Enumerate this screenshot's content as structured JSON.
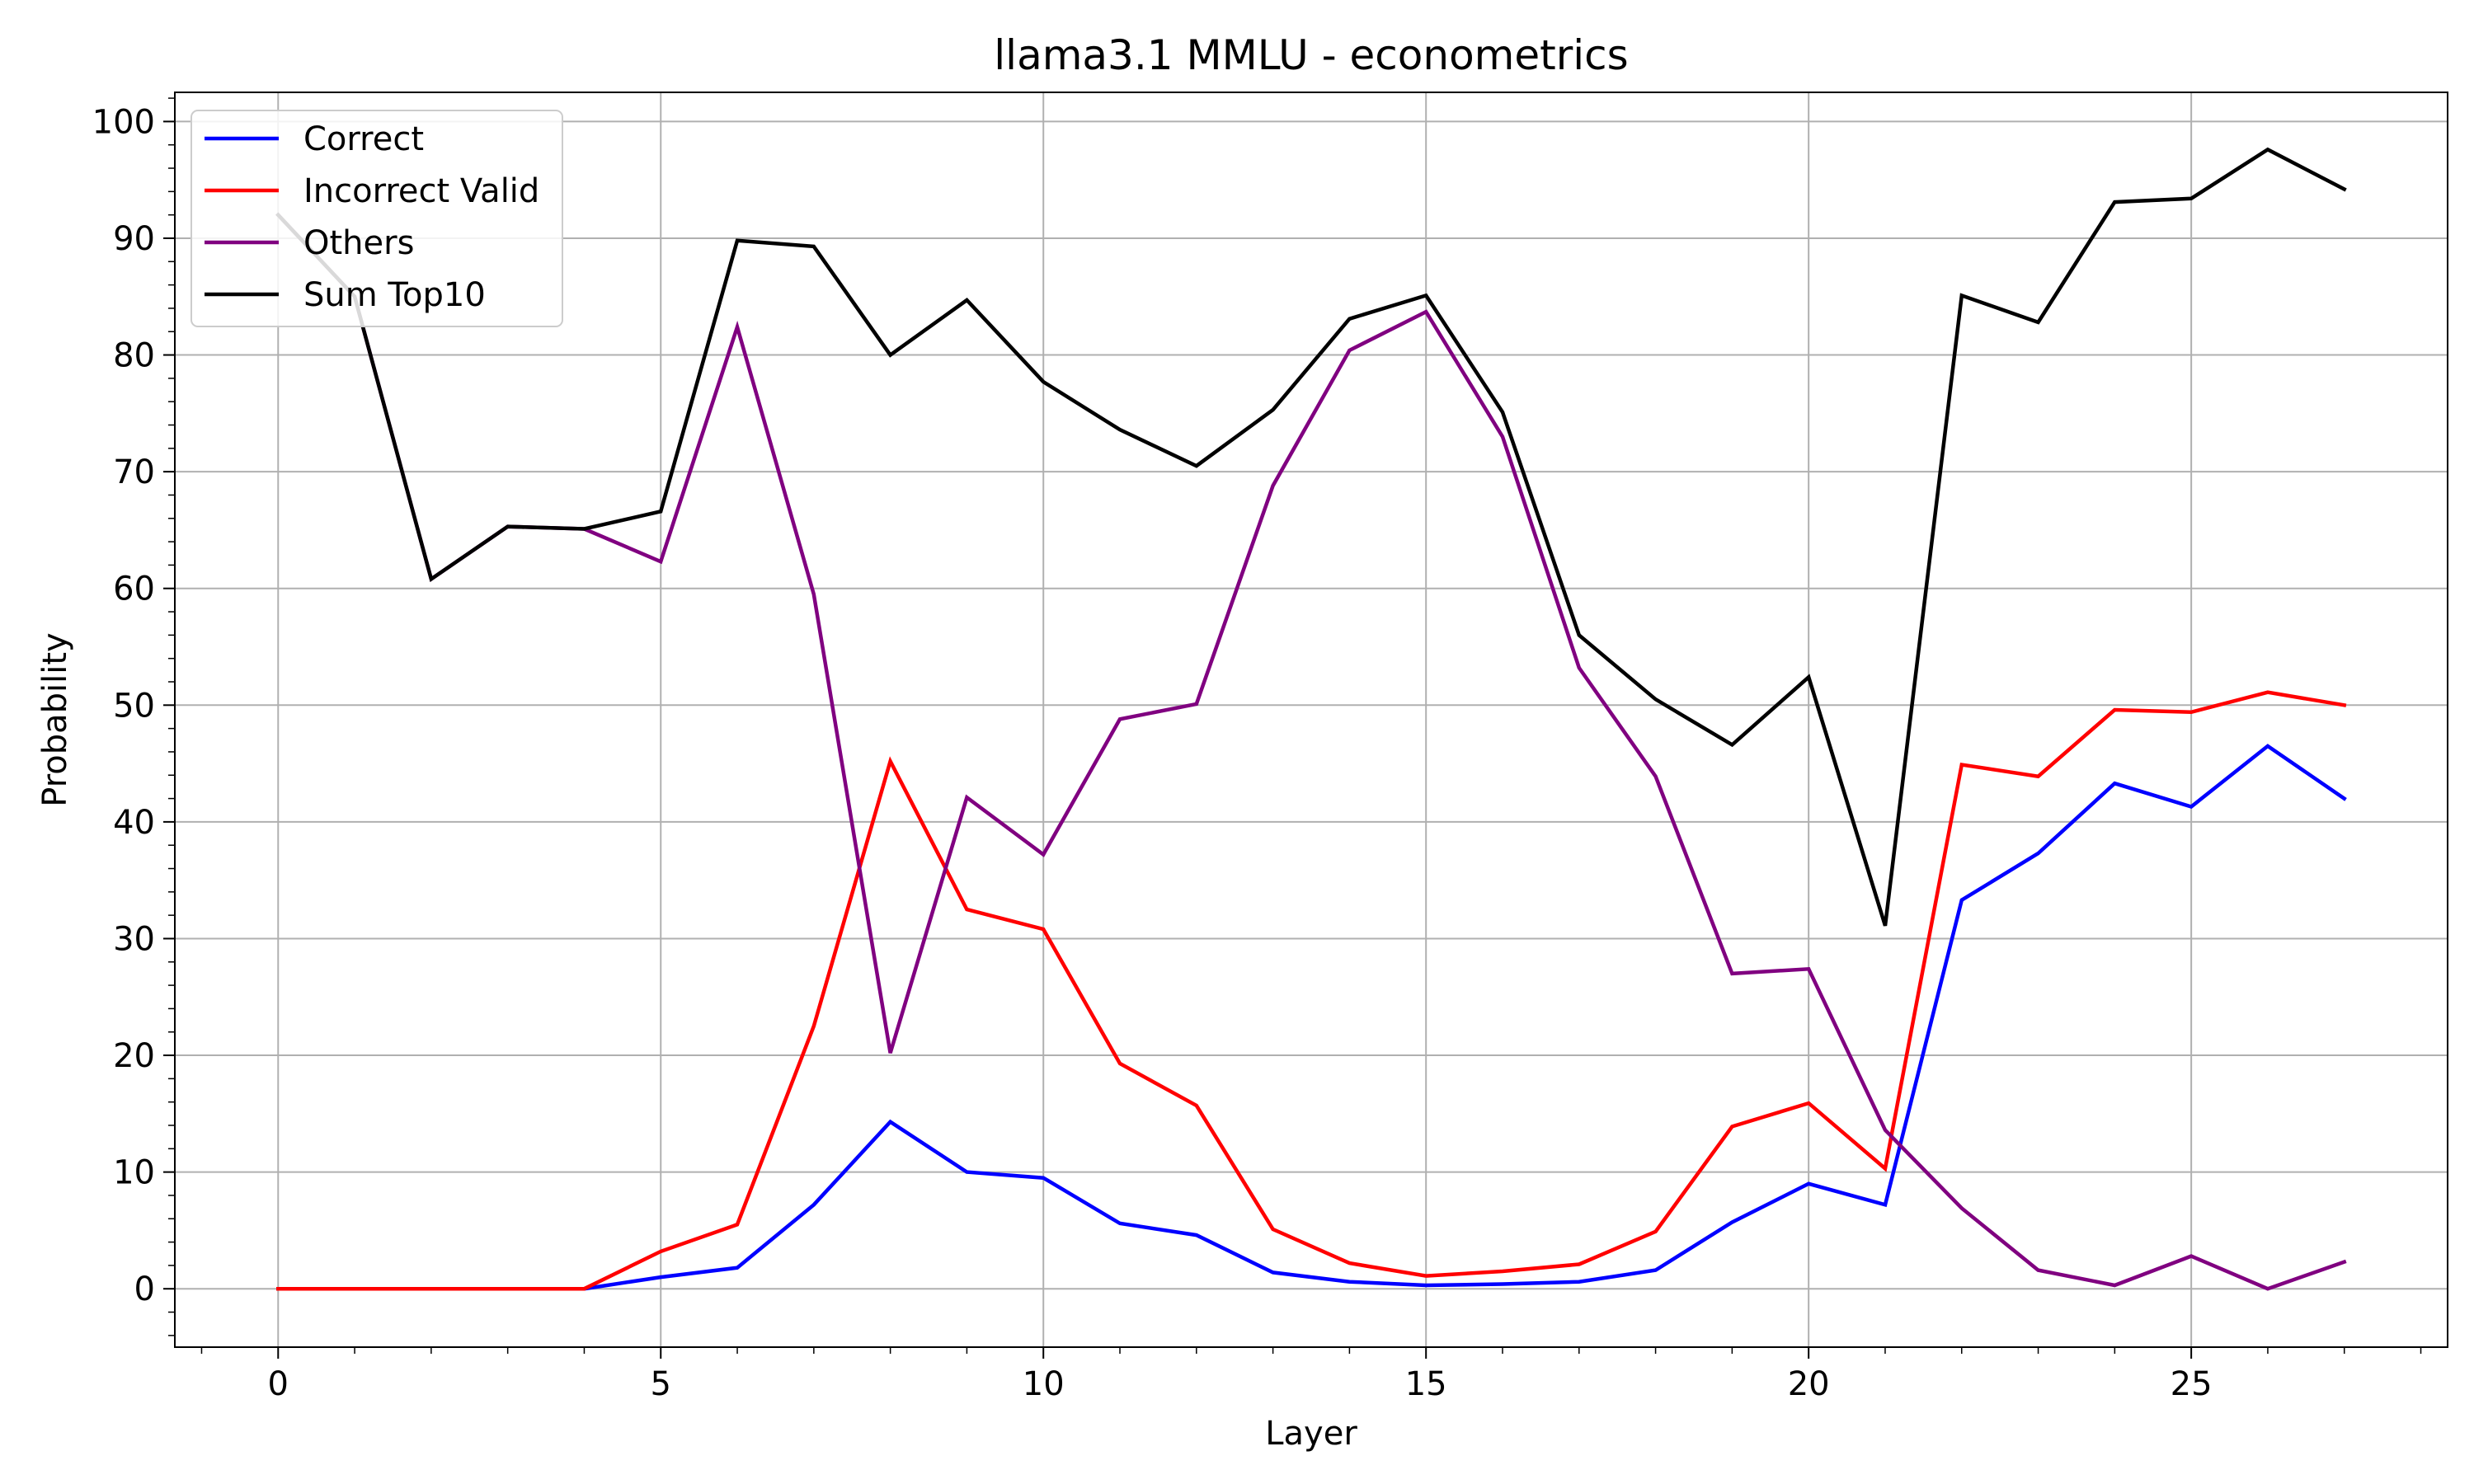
{
  "chart_data": {
    "type": "line",
    "title": "llama3.1 MMLU - econometrics",
    "xlabel": "Layer",
    "ylabel": "Probability",
    "xlim": [
      -1.35,
      28.35
    ],
    "ylim": [
      -5,
      102.5
    ],
    "x_ticks": [
      0,
      5,
      10,
      15,
      20,
      25
    ],
    "y_ticks": [
      0,
      10,
      20,
      30,
      40,
      50,
      60,
      70,
      80,
      90,
      100
    ],
    "grid": true,
    "legend_position": "top-left",
    "x": [
      0,
      1,
      2,
      3,
      4,
      5,
      6,
      7,
      8,
      9,
      10,
      11,
      12,
      13,
      14,
      15,
      16,
      17,
      18,
      19,
      20,
      21,
      22,
      23,
      24,
      25,
      26,
      27
    ],
    "series": [
      {
        "name": "Correct",
        "color": "#0000ff",
        "values": [
          0,
          0,
          0,
          0,
          0,
          1.0,
          1.8,
          7.2,
          14.3,
          10.0,
          9.5,
          5.6,
          4.6,
          1.4,
          0.6,
          0.3,
          0.4,
          0.6,
          1.6,
          5.7,
          9.0,
          7.2,
          33.3,
          37.3,
          43.3,
          41.3,
          46.5,
          42.0
        ]
      },
      {
        "name": "Incorrect Valid",
        "color": "#ff0000",
        "values": [
          0,
          0,
          0,
          0,
          0,
          3.2,
          5.5,
          22.5,
          45.2,
          32.5,
          30.8,
          19.3,
          15.7,
          5.1,
          2.2,
          1.1,
          1.5,
          2.1,
          4.9,
          13.9,
          15.9,
          10.3,
          44.9,
          43.9,
          49.6,
          49.4,
          51.1,
          50.0
        ]
      },
      {
        "name": "Others",
        "color": "#800080",
        "values": [
          92.0,
          85.0,
          60.8,
          65.3,
          65.1,
          62.3,
          82.4,
          59.5,
          20.2,
          42.1,
          37.2,
          48.8,
          50.1,
          68.8,
          80.4,
          83.7,
          73.0,
          53.2,
          43.9,
          27.0,
          27.4,
          13.6,
          6.9,
          1.6,
          0.3,
          2.8,
          0.0,
          2.3
        ]
      },
      {
        "name": "Sum Top10",
        "color": "#000000",
        "values": [
          92.0,
          85.0,
          60.8,
          65.3,
          65.1,
          66.6,
          89.8,
          89.3,
          80.0,
          84.7,
          77.7,
          73.6,
          70.5,
          75.3,
          83.1,
          85.1,
          75.1,
          56.0,
          50.5,
          46.6,
          52.4,
          31.1,
          85.1,
          82.8,
          93.1,
          93.4,
          97.6,
          94.2
        ]
      }
    ]
  }
}
